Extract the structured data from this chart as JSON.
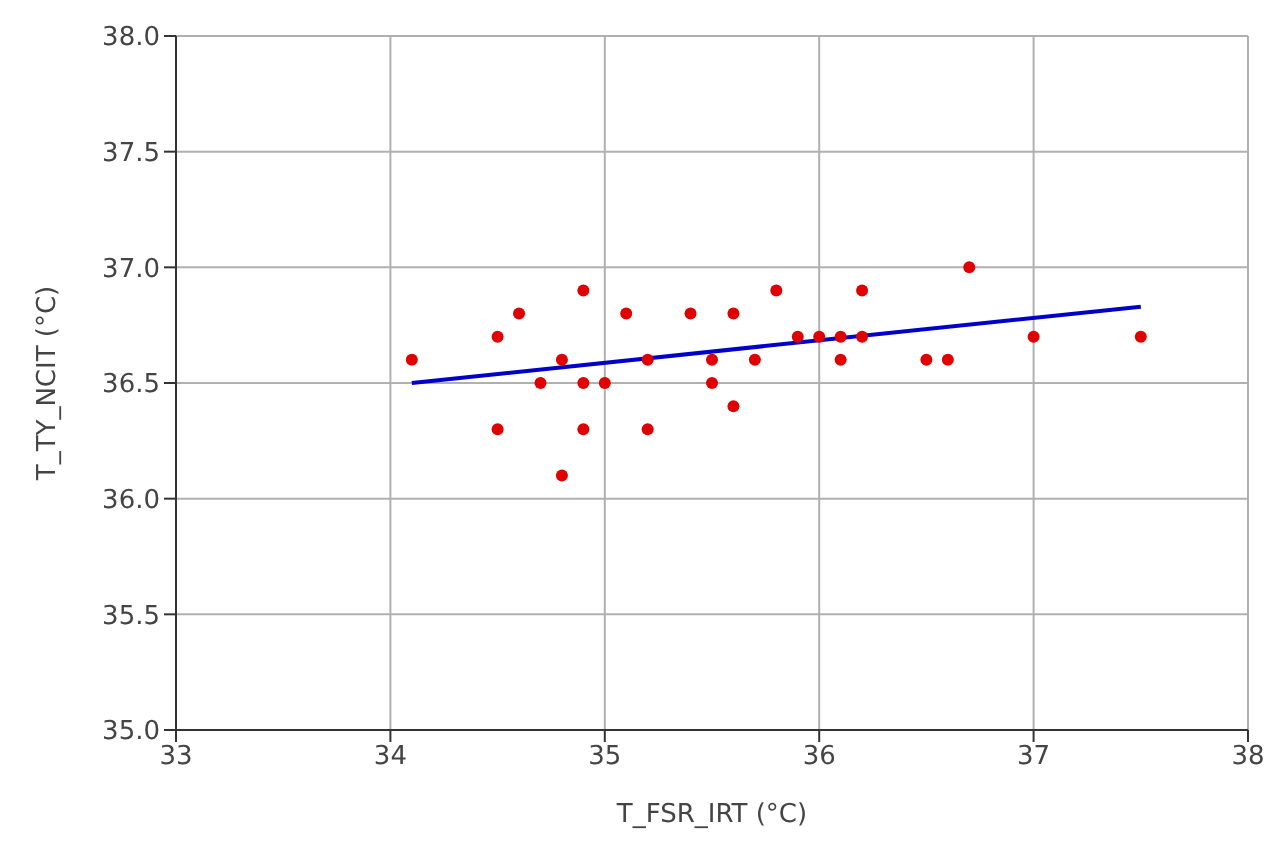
{
  "chart_data": {
    "type": "scatter",
    "xlabel": "T_FSR_IRT (°C)",
    "ylabel": "T_TY_NCIT (°C)",
    "xlim": [
      33,
      38
    ],
    "xticks": [
      33,
      34,
      35,
      36,
      37,
      38
    ],
    "ylim": [
      35,
      38
    ],
    "yticks": [
      {
        "value": 35,
        "label": "35.0"
      },
      {
        "value": 35.5,
        "label": "35.5"
      },
      {
        "value": 36,
        "label": "36.0"
      },
      {
        "value": 36.5,
        "label": "36.5"
      },
      {
        "value": 37,
        "label": "37.0"
      },
      {
        "value": 37.5,
        "label": "37.5"
      },
      {
        "value": 38,
        "label": "38.0"
      }
    ],
    "grid": true,
    "series": [
      {
        "color": "#e00000",
        "marker": "circle",
        "x": [
          34.1,
          34.5,
          34.5,
          34.6,
          34.7,
          34.8,
          34.8,
          34.9,
          34.9,
          34.9,
          35.0,
          35.1,
          35.2,
          35.2,
          35.4,
          35.5,
          35.5,
          35.6,
          35.6,
          35.7,
          35.8,
          35.9,
          36.0,
          36.1,
          36.1,
          36.2,
          36.2,
          36.5,
          36.6,
          36.7,
          37.0,
          37.5
        ],
        "values": [
          36.6,
          36.7,
          36.3,
          36.8,
          36.5,
          36.6,
          36.1,
          36.9,
          36.5,
          36.3,
          36.5,
          36.8,
          36.6,
          36.3,
          36.8,
          36.6,
          36.5,
          36.8,
          36.4,
          36.6,
          36.9,
          36.7,
          36.7,
          36.6,
          36.7,
          36.9,
          36.7,
          36.6,
          36.6,
          37.0,
          36.7,
          36.7
        ]
      },
      {
        "type": "line",
        "color": "#0000c8",
        "marker": "none",
        "x": [
          34.1,
          37.5
        ],
        "values": [
          36.5,
          36.83
        ]
      }
    ]
  }
}
